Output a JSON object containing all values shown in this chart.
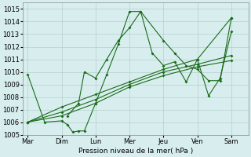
{
  "xlabel": "Pression niveau de la mer( hPa )",
  "xtick_labels": [
    "Mar",
    "Dim",
    "Lun",
    "Mer",
    "Jeu",
    "Ven",
    "Sam"
  ],
  "ylim": [
    1005,
    1015.5
  ],
  "yticks": [
    1005,
    1006,
    1007,
    1008,
    1009,
    1010,
    1011,
    1012,
    1013,
    1014,
    1015
  ],
  "bg_color": "#d8eeee",
  "line_color": "#1a6b1a",
  "line1_x": [
    0,
    0.5,
    1.0,
    1.17,
    1.33,
    1.5,
    1.67,
    2.0,
    2.33,
    2.67,
    3.0,
    3.33,
    4.0,
    4.33,
    4.67,
    5.0,
    5.33,
    5.67,
    6.0
  ],
  "line1_y": [
    1009.8,
    1006.0,
    1006.1,
    1005.8,
    1005.2,
    1005.3,
    1005.3,
    1007.5,
    1009.8,
    1012.2,
    1014.8,
    1014.8,
    1012.5,
    1011.5,
    1010.5,
    1010.2,
    1009.3,
    1009.3,
    1014.3
  ],
  "line2_x": [
    1.17,
    1.5,
    1.67,
    2.0,
    2.33,
    2.67,
    3.0,
    3.33,
    3.67,
    4.0,
    4.33,
    4.67,
    5.0,
    5.33,
    5.67,
    6.0
  ],
  "line2_y": [
    1006.5,
    1007.5,
    1010.0,
    1009.5,
    1011.0,
    1012.5,
    1013.5,
    1014.8,
    1011.5,
    1010.5,
    1010.8,
    1009.2,
    1011.0,
    1008.1,
    1009.5,
    1013.2
  ],
  "line3_x": [
    0,
    1,
    2,
    3,
    4,
    5,
    6
  ],
  "line3_y": [
    1006.0,
    1006.5,
    1007.5,
    1008.8,
    1009.7,
    1010.4,
    1010.9
  ],
  "line4_x": [
    0,
    1,
    2,
    3,
    4,
    5,
    6
  ],
  "line4_y": [
    1006.0,
    1006.8,
    1007.8,
    1009.0,
    1010.0,
    1010.6,
    1011.3
  ],
  "line5_x": [
    0,
    1,
    2,
    3,
    4,
    5,
    6
  ],
  "line5_y": [
    1006.0,
    1007.2,
    1008.2,
    1009.2,
    1010.2,
    1011.0,
    1014.3
  ]
}
